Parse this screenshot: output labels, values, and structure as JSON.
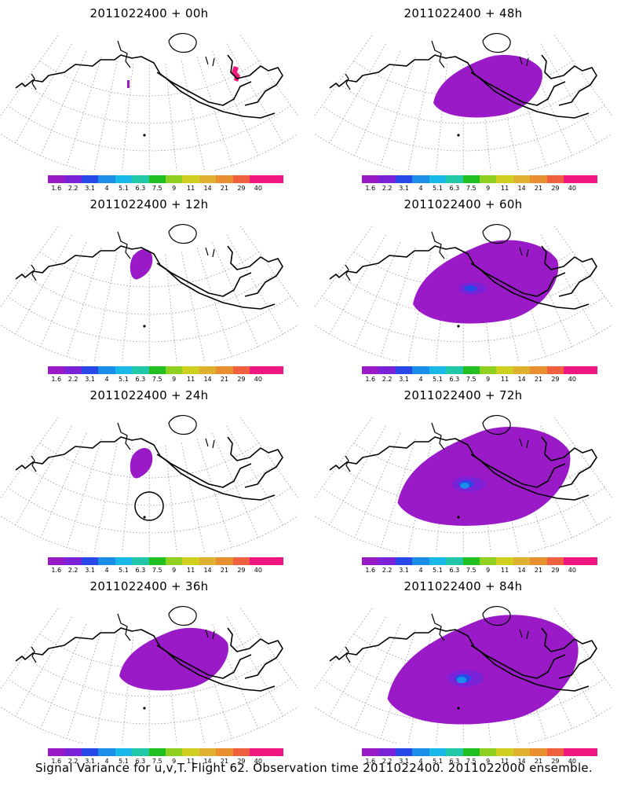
{
  "panels": [
    {
      "title": "2011022400 + 00h",
      "col": 0,
      "row": 0,
      "spread": 0
    },
    {
      "title": "2011022400 + 48h",
      "col": 1,
      "row": 0,
      "spread": 2
    },
    {
      "title": "2011022400 + 12h",
      "col": 0,
      "row": 1,
      "spread": 1
    },
    {
      "title": "2011022400 + 60h",
      "col": 1,
      "row": 1,
      "spread": 3
    },
    {
      "title": "2011022400 + 24h",
      "col": 0,
      "row": 2,
      "spread": 1
    },
    {
      "title": "2011022400 + 72h",
      "col": 1,
      "row": 2,
      "spread": 4
    },
    {
      "title": "2011022400 + 36h",
      "col": 0,
      "row": 3,
      "spread": 2
    },
    {
      "title": "2011022400 + 84h",
      "col": 1,
      "row": 3,
      "spread": 5
    }
  ],
  "colorbar": {
    "labels": [
      "1.6",
      "2.2",
      "3.1",
      "4",
      "5.1",
      "6.3",
      "7.5",
      "9",
      "11",
      "14",
      "21",
      "29",
      "40"
    ],
    "colors": [
      "#9a1ac8",
      "#7a22d8",
      "#2848e8",
      "#1a8ee8",
      "#18b8e8",
      "#20c8a8",
      "#20c020",
      "#90d020",
      "#d0d020",
      "#e0b030",
      "#e89030",
      "#f06040",
      "#f01880",
      "#f01880"
    ]
  },
  "caption": "Signal Variance for u,v,T. Flight 62. Observation time 2011022400. 2011022000 ensemble."
}
